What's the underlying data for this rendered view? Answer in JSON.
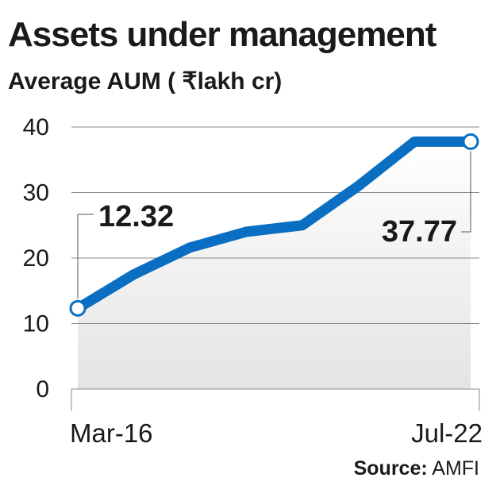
{
  "title": "Assets under management",
  "subtitle": "Average AUM ( ₹lakh cr)",
  "source": {
    "label": "Source:",
    "value": "AMFI"
  },
  "chart_data": {
    "type": "area",
    "title": "Assets under management",
    "subtitle": "Average AUM ( ₹lakh cr)",
    "xlabel": "",
    "ylabel": "",
    "x_tick_labels": [
      "Mar-16",
      "Jul-22"
    ],
    "y_ticks": [
      0,
      10,
      20,
      30,
      40
    ],
    "ylim": [
      0,
      40
    ],
    "grid": true,
    "series": [
      {
        "values": [
          12.32,
          17.5,
          21.6,
          24.0,
          25.0,
          31.0,
          37.77,
          37.77
        ],
        "color": "#0a6fc2"
      }
    ],
    "annotations": [
      {
        "text": "12.32",
        "point_index": 0
      },
      {
        "text": "37.77",
        "point_index": 7
      }
    ]
  }
}
